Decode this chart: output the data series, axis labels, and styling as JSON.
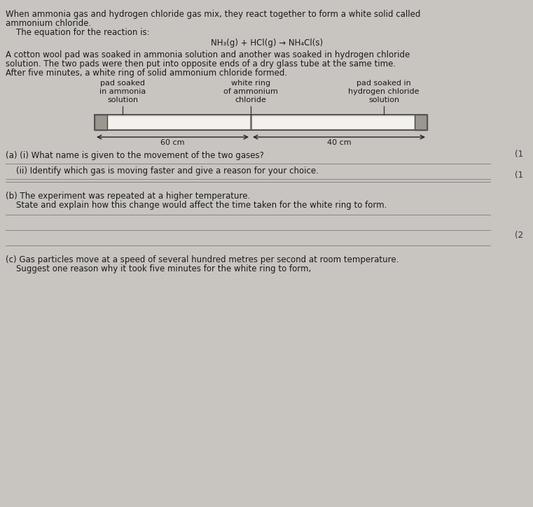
{
  "bg_color": "#c8c4c0",
  "paper_color": "#e8e4e0",
  "text_color": "#1a1a1a",
  "title_text_line1": "When ammonia gas and hydrogen chloride gas mix, they react together to form a white solid called",
  "title_text_line2": "ammonium chloride.",
  "equation_prefix": "    The equation for the reaction is:",
  "equation": "NH₃(g) + HCl(g) → NH₄Cl(s)",
  "body_text_line1": "A cotton wool pad was soaked in ammonia solution and another was soaked in hydrogen chloride",
  "body_text_line2": "solution. The two pads were then put into opposite ends of a dry glass tube at the same time.",
  "body_text_line3": "After five minutes, a white ring of solid ammonium chloride formed.",
  "label_left_line1": "pad soaked",
  "label_left_line2": "in ammonia",
  "label_left_line3": "solution",
  "label_center_line1": "white ring",
  "label_center_line2": "of ammonium",
  "label_center_line3": "chloride",
  "label_right_line1": "pad soaked in",
  "label_right_line2": "hydrogen chloride",
  "label_right_line3": "solution",
  "dim_left": "60 cm",
  "dim_right": "40 cm",
  "q_a_i": "(a) (i) What name is given to the movement of the two gases?",
  "q_a_ii": "    (ii) Identify which gas is moving faster and give a reason for your choice.",
  "q_b_line1": "(b) The experiment was repeated at a higher temperature.",
  "q_b_line2": "    State and explain how this change would affect the time taken for the white ring to form.",
  "q_c_line1": "(c) Gas particles move at a speed of several hundred metres per second at room temperature.",
  "q_c_line2": "    Suggest one reason why it took five minutes for the white ring to form,",
  "mark_1a": "(1",
  "mark_1b": "(1",
  "mark_2": "(2"
}
